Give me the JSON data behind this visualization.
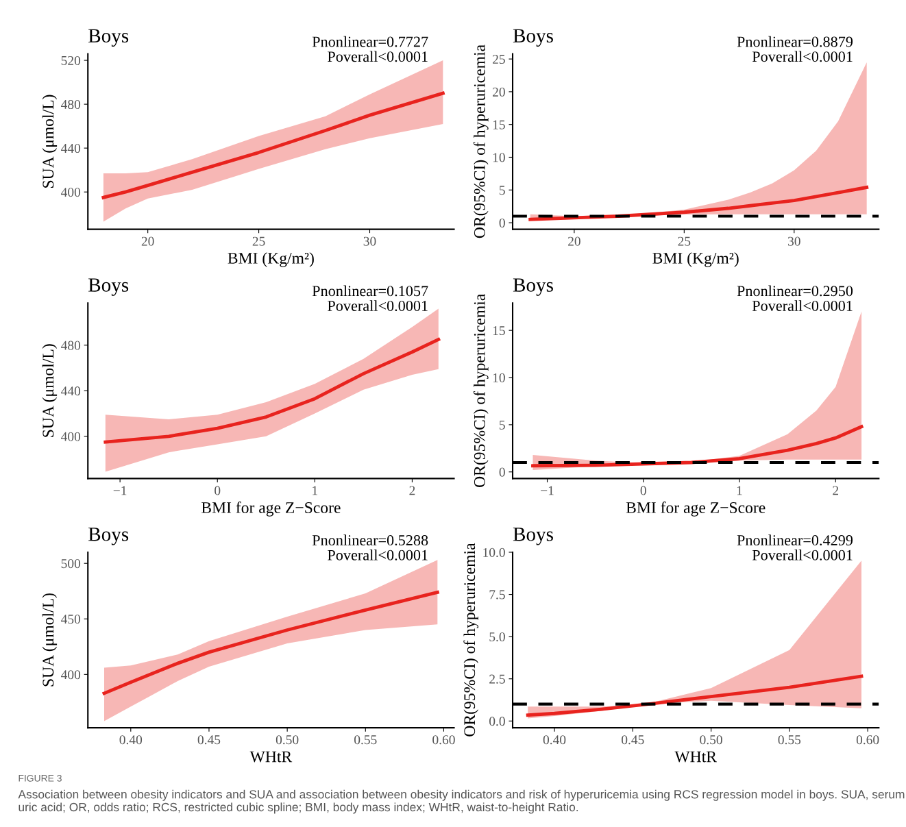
{
  "chart_data": [
    {
      "type": "line",
      "title": "Boys",
      "xlabel": "BMI (Kg/m²)",
      "ylabel": "SUA (μmol/L)",
      "annotations": [
        "Pnonlinear=0.7727",
        "Poverall<0.0001"
      ],
      "xlim": [
        17.3,
        33.8
      ],
      "xticks": [
        20,
        25,
        30
      ],
      "ylim": [
        366,
        526
      ],
      "yticks": [
        400,
        440,
        480,
        520
      ],
      "grid": false,
      "line_style": "solid",
      "series": [
        {
          "color": "#e8231e",
          "x": [
            18,
            19,
            20,
            22,
            25,
            28,
            30,
            33.3
          ],
          "values": [
            395,
            400,
            406,
            418,
            436,
            456,
            470,
            490
          ],
          "lower": [
            373,
            385,
            394,
            402,
            421,
            439,
            449,
            462
          ],
          "upper": [
            417,
            417,
            418,
            430,
            451,
            469,
            489,
            520
          ]
        }
      ]
    },
    {
      "type": "line",
      "title": "Boys",
      "xlabel": "BMI (Kg/m²)",
      "ylabel": "OR(95%CI) of hyperuricemia",
      "annotations": [
        "Pnonlinear=0.8879",
        "Poverall<0.0001"
      ],
      "xlim": [
        17.2,
        33.85
      ],
      "xticks": [
        20,
        25,
        30
      ],
      "ylim": [
        -1,
        25.8
      ],
      "yticks": [
        0,
        5,
        10,
        15,
        20,
        25
      ],
      "grid": false,
      "line_style": "solid",
      "ref_lines": [
        {
          "axis": "y",
          "value": 1,
          "color": "#000000",
          "line_style": "dashed"
        }
      ],
      "series": [
        {
          "color": "#e8231e",
          "x": [
            18,
            20,
            22,
            25,
            27,
            28,
            29,
            30,
            31,
            32,
            33.3
          ],
          "values": [
            0.5,
            0.75,
            1.0,
            1.6,
            2.2,
            2.6,
            3.0,
            3.4,
            4.0,
            4.6,
            5.4
          ],
          "lower": [
            0.4,
            0.7,
            1.0,
            1.25,
            1.3,
            1.3,
            1.3,
            1.3,
            1.3,
            1.3,
            1.3
          ],
          "upper": [
            1.3,
            1.0,
            1.05,
            2.0,
            3.5,
            4.6,
            6,
            8,
            11,
            15.5,
            24.5
          ]
        }
      ]
    },
    {
      "type": "line",
      "title": "Boys",
      "xlabel": "BMI for age Z−Score",
      "ylabel": "SUA (μmol/L)",
      "annotations": [
        "Pnonlinear=0.1057",
        "Poverall<0.0001"
      ],
      "xlim": [
        -1.33,
        2.43
      ],
      "xticks": [
        {
          "value": -1,
          "label": "−1"
        },
        0,
        1,
        2
      ],
      "ylim": [
        363,
        517
      ],
      "yticks": [
        400,
        440,
        480
      ],
      "grid": false,
      "line_style": "solid",
      "series": [
        {
          "color": "#e8231e",
          "x": [
            -1.15,
            -0.5,
            0,
            0.5,
            1,
            1.5,
            2,
            2.27
          ],
          "values": [
            395,
            400,
            407,
            417,
            433,
            455,
            474,
            485
          ],
          "lower": [
            369,
            386,
            393,
            400,
            420,
            441,
            454,
            459
          ],
          "upper": [
            419,
            415,
            419,
            430,
            446,
            468,
            496,
            512
          ]
        }
      ]
    },
    {
      "type": "line",
      "title": "Boys",
      "xlabel": "BMI for age Z−Score",
      "ylabel": "OR(95%CI) of hyperuricemia",
      "annotations": [
        "Pnonlinear=0.2950",
        "Poverall<0.0001"
      ],
      "xlim": [
        -1.36,
        2.45
      ],
      "xticks": [
        {
          "value": -1,
          "label": "−1"
        },
        0,
        1,
        2
      ],
      "ylim": [
        -0.7,
        17.9
      ],
      "yticks": [
        0,
        5,
        10,
        15
      ],
      "grid": false,
      "line_style": "solid",
      "ref_lines": [
        {
          "axis": "y",
          "value": 1,
          "color": "#000000",
          "line_style": "dashed"
        }
      ],
      "series": [
        {
          "color": "#e8231e",
          "x": [
            -1.15,
            -0.5,
            0,
            0.5,
            1,
            1.5,
            1.8,
            2,
            2.27
          ],
          "values": [
            0.65,
            0.7,
            0.85,
            1.0,
            1.4,
            2.3,
            3.0,
            3.6,
            4.8
          ],
          "lower": [
            0.2,
            0.6,
            0.8,
            1.0,
            1.2,
            1.3,
            1.3,
            1.3,
            1.3
          ],
          "upper": [
            1.8,
            1.2,
            0.95,
            1.05,
            1.7,
            4,
            6.5,
            9,
            17
          ]
        }
      ]
    },
    {
      "type": "line",
      "title": "Boys",
      "xlabel": "WHtR",
      "ylabel": "SUA (μmol/L)",
      "annotations": [
        "Pnonlinear=0.5288",
        "Poverall<0.0001"
      ],
      "xlim": [
        0.3726,
        0.6066
      ],
      "xticks": [
        {
          "value": 0.4,
          "label": "0.40"
        },
        {
          "value": 0.45,
          "label": "0.45"
        },
        {
          "value": 0.5,
          "label": "0.50"
        },
        {
          "value": 0.55,
          "label": "0.55"
        },
        {
          "value": 0.6,
          "label": "0.60"
        }
      ],
      "ylim": [
        352,
        510
      ],
      "yticks": [
        400,
        450,
        500
      ],
      "grid": false,
      "line_style": "solid",
      "series": [
        {
          "color": "#e8231e",
          "x": [
            0.383,
            0.4,
            0.43,
            0.45,
            0.5,
            0.55,
            0.596
          ],
          "values": [
            383,
            393,
            410,
            420,
            440,
            458,
            474
          ],
          "lower": [
            358,
            371,
            394,
            407,
            428,
            440,
            445
          ],
          "upper": [
            406,
            408,
            418,
            430,
            452,
            473,
            503
          ]
        }
      ]
    },
    {
      "type": "line",
      "title": "Boys",
      "xlabel": "WHtR",
      "ylabel": "OR(95%CI) of hyperuricemia",
      "annotations": [
        "Pnonlinear=0.4299",
        "Poverall<0.0001",
        "FIGURE 3",
        "Association between obesity indicators and SUA and association between obesity indicators and risk of hyperuricemia using RCS regression model in boys. SUA, serum uric acid; OR, odds ratio; RCS, restricted cubic spline; BMI, body mass index; WHtR, waist-to-height Ratio."
      ],
      "xlim": [
        0.3733,
        0.6071
      ],
      "xticks": [
        {
          "value": 0.4,
          "label": "0.40"
        },
        {
          "value": 0.45,
          "label": "0.45"
        },
        {
          "value": 0.5,
          "label": "0.50"
        },
        {
          "value": 0.55,
          "label": "0.55"
        },
        {
          "value": 0.6,
          "label": "0.60"
        }
      ],
      "ylim": [
        -0.4,
        10
      ],
      "yticks": [
        {
          "value": 0,
          "label": "0.0"
        },
        {
          "value": 2.5,
          "label": "2.5"
        },
        {
          "value": 5,
          "label": "5.0"
        },
        {
          "value": 7.5,
          "label": "7.5"
        },
        {
          "value": 10,
          "label": "10.0"
        }
      ],
      "grid": false,
      "line_style": "solid",
      "ref_lines": [
        {
          "axis": "y",
          "value": 1,
          "color": "#000000",
          "line_style": "dashed"
        }
      ],
      "series": [
        {
          "color": "#e8231e",
          "x": [
            0.383,
            0.4,
            0.43,
            0.45,
            0.46,
            0.5,
            0.55,
            0.596
          ],
          "values": [
            0.35,
            0.45,
            0.7,
            0.9,
            1.0,
            1.45,
            2.0,
            2.65
          ],
          "lower": [
            0.15,
            0.3,
            0.6,
            0.85,
            1.0,
            1.2,
            0.95,
            0.75
          ],
          "upper": [
            0.85,
            0.85,
            0.85,
            0.95,
            1.05,
            1.95,
            4.2,
            9.5
          ]
        }
      ]
    }
  ]
}
